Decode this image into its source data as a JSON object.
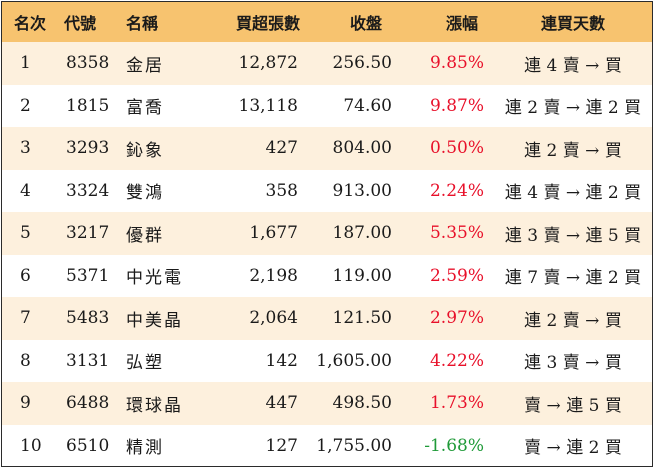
{
  "colors": {
    "header_bg": "#f7c36f",
    "stripe_bg": "#fdf0dd",
    "up": "#e8102a",
    "down": "#1f9a38"
  },
  "table": {
    "headers": [
      "名次",
      "代號",
      "名稱",
      "買超張數",
      "收盤",
      "漲幅",
      "連買天數"
    ],
    "rows": [
      {
        "rank": "1",
        "code": "8358",
        "name": "金居",
        "volume": "12,872",
        "close": "256.50",
        "change": "9.85%",
        "direction": "up",
        "days": "連 4 賣 → 買"
      },
      {
        "rank": "2",
        "code": "1815",
        "name": "富喬",
        "volume": "13,118",
        "close": "74.60",
        "change": "9.87%",
        "direction": "up",
        "days": "連 2 賣 → 連 2 買"
      },
      {
        "rank": "3",
        "code": "3293",
        "name": "鈊象",
        "volume": "427",
        "close": "804.00",
        "change": "0.50%",
        "direction": "up",
        "days": "連 2 賣 → 買"
      },
      {
        "rank": "4",
        "code": "3324",
        "name": "雙鴻",
        "volume": "358",
        "close": "913.00",
        "change": "2.24%",
        "direction": "up",
        "days": "連 4 賣 → 連 2 買"
      },
      {
        "rank": "5",
        "code": "3217",
        "name": "優群",
        "volume": "1,677",
        "close": "187.00",
        "change": "5.35%",
        "direction": "up",
        "days": "連 3 賣 → 連 5 買"
      },
      {
        "rank": "6",
        "code": "5371",
        "name": "中光電",
        "volume": "2,198",
        "close": "119.00",
        "change": "2.59%",
        "direction": "up",
        "days": "連 7 賣 → 連 2 買"
      },
      {
        "rank": "7",
        "code": "5483",
        "name": "中美晶",
        "volume": "2,064",
        "close": "121.50",
        "change": "2.97%",
        "direction": "up",
        "days": "連 2 賣 → 買"
      },
      {
        "rank": "8",
        "code": "3131",
        "name": "弘塑",
        "volume": "142",
        "close": "1,605.00",
        "change": "4.22%",
        "direction": "up",
        "days": "連 3 賣 → 買"
      },
      {
        "rank": "9",
        "code": "6488",
        "name": "環球晶",
        "volume": "447",
        "close": "498.50",
        "change": "1.73%",
        "direction": "up",
        "days": "賣 → 連 5 買"
      },
      {
        "rank": "10",
        "code": "6510",
        "name": "精測",
        "volume": "127",
        "close": "1,755.00",
        "change": "-1.68%",
        "direction": "down",
        "days": "賣 → 連 2 買"
      }
    ]
  }
}
